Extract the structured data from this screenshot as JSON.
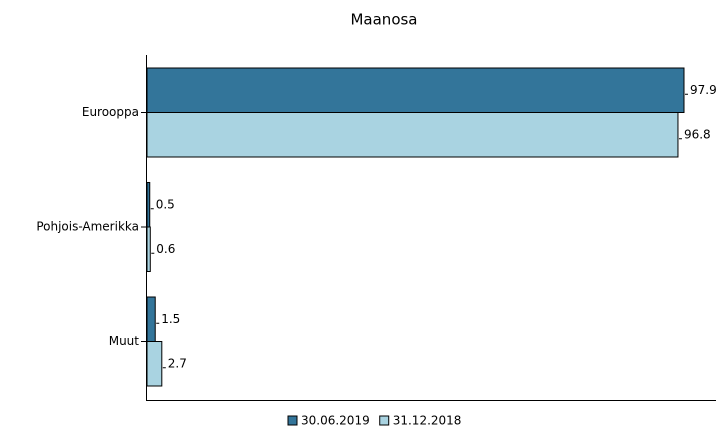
{
  "chart_data": {
    "type": "bar",
    "orientation": "horizontal",
    "title": "Maanosa",
    "categories": [
      "Eurooppa",
      "Pohjois-Amerikka",
      "Muut"
    ],
    "series": [
      {
        "name": "30.06.2019",
        "color": "#33759a",
        "values": [
          97.9,
          0.5,
          1.5
        ]
      },
      {
        "name": "31.12.2018",
        "color": "#a9d3e1",
        "values": [
          96.8,
          0.6,
          2.7
        ]
      }
    ]
  }
}
